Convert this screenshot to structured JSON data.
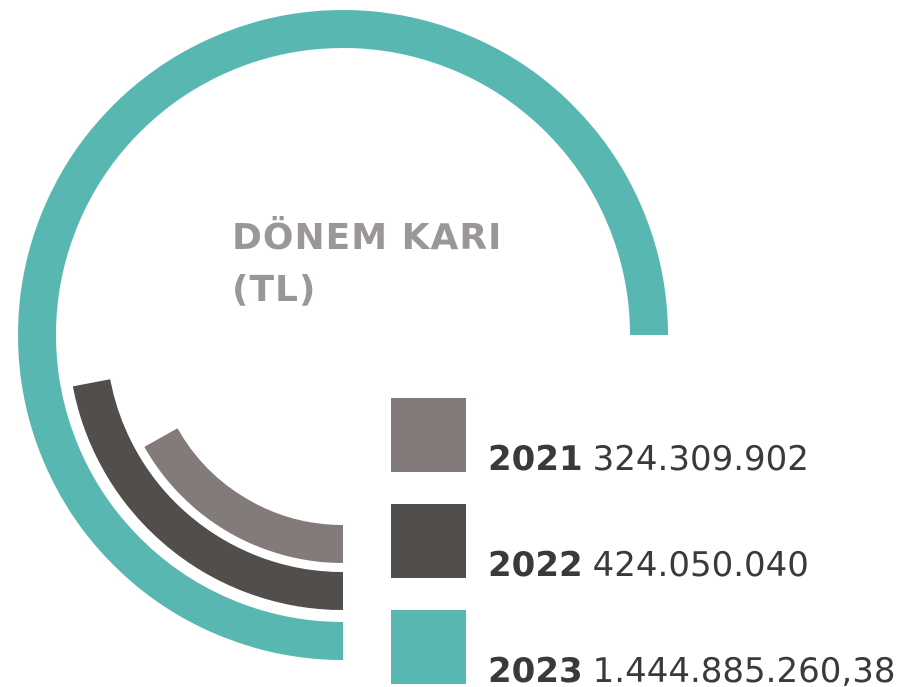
{
  "chart_data": {
    "type": "radial_bar",
    "title": "DÖNEM KARI (TL)",
    "series": [
      {
        "name": "2021",
        "color": "#827b7a",
        "values": [
          324309902
        ],
        "value_labels": [
          "324.309.902"
        ]
      },
      {
        "name": "2022",
        "color": "#524e4b",
        "values": [
          424050040
        ],
        "value_labels": [
          "424.050.040"
        ]
      },
      {
        "name": "2023",
        "color": "#59b7b2",
        "values": [
          1444885260.38
        ],
        "value_labels": [
          "1.444.885.260,38"
        ]
      }
    ]
  }
}
